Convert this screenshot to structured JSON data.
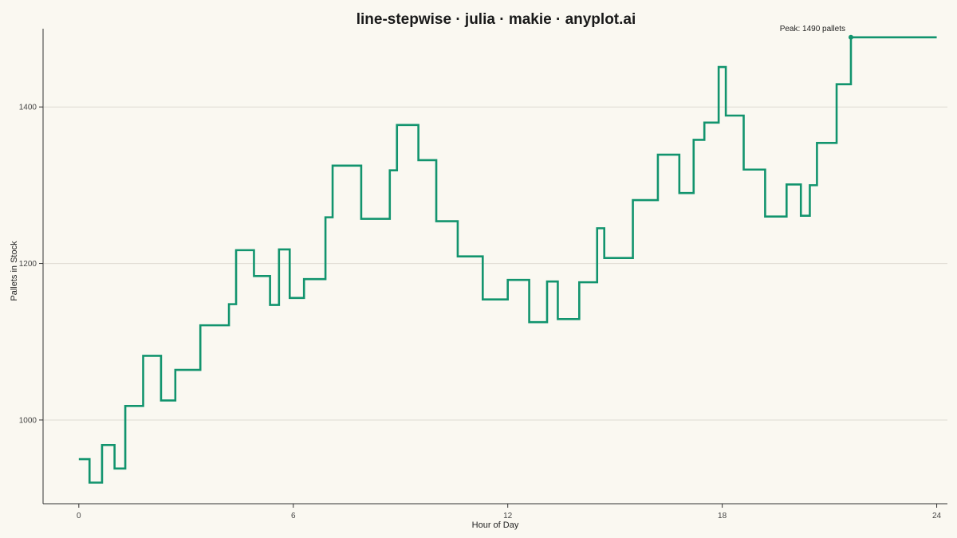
{
  "chart_data": {
    "type": "line",
    "step": "post",
    "title": "line-stepwise · julia · makie · anyplot.ai",
    "xlabel": "Hour of Day",
    "ylabel": "Pallets in Stock",
    "xlim": [
      -1,
      24.3
    ],
    "ylim": [
      893,
      1500
    ],
    "xticks": [
      0,
      6,
      12,
      18,
      24
    ],
    "yticks": [
      1000,
      1200,
      1400
    ],
    "grid": "horizontal",
    "legend": "none",
    "line_color": "#12946E",
    "series": [
      {
        "x": [
          0,
          0.3,
          0.65,
          1.0,
          1.3,
          1.8,
          2.3,
          2.7,
          3.4,
          4.2,
          4.4,
          4.9,
          5.35,
          5.6,
          5.9,
          6.3,
          6.9,
          7.1,
          7.9,
          8.7,
          8.9,
          9.5,
          10.0,
          10.6,
          11.3,
          12.0,
          12.6,
          13.1,
          13.4,
          14.0,
          14.5,
          14.7,
          15.5,
          16.2,
          16.8,
          17.2,
          17.5,
          17.9,
          18.1,
          18.6,
          19.2,
          19.8,
          20.2,
          20.45,
          20.65,
          21.2,
          21.6,
          24
        ],
        "y": [
          950,
          920,
          968,
          938,
          1018,
          1082,
          1025,
          1064,
          1121,
          1148,
          1217,
          1184,
          1147,
          1218,
          1156,
          1180,
          1259,
          1325,
          1257,
          1319,
          1377,
          1332,
          1254,
          1209,
          1154,
          1179,
          1125,
          1177,
          1129,
          1176,
          1245,
          1207,
          1281,
          1339,
          1290,
          1358,
          1380,
          1451,
          1389,
          1320,
          1260,
          1301,
          1261,
          1300,
          1354,
          1429,
          1489,
          1489
        ]
      }
    ],
    "annotations": [
      {
        "text": "Peak: 1490 pallets",
        "x": 21.6,
        "y": 1489
      }
    ]
  }
}
